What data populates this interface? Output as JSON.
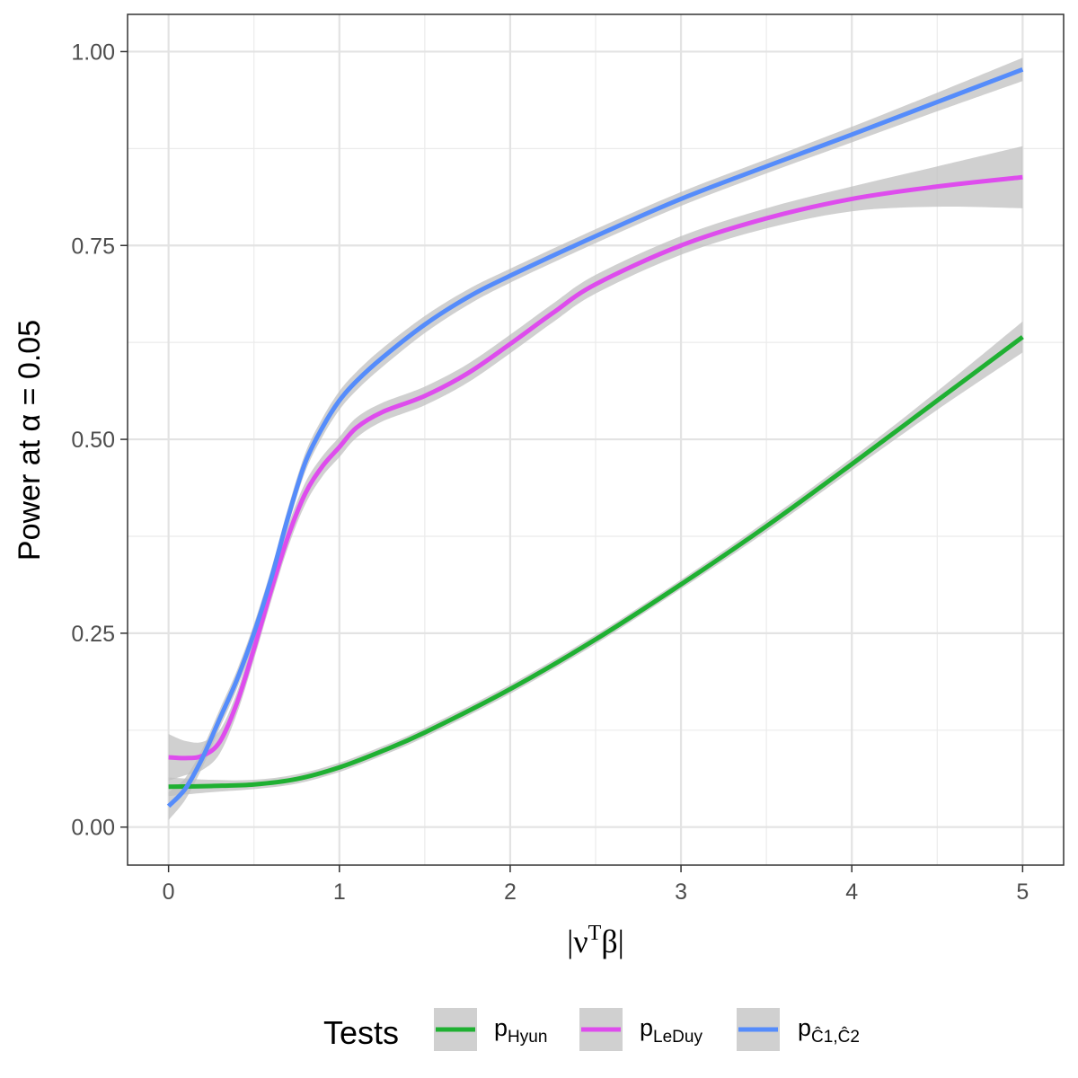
{
  "chart_data": {
    "type": "line",
    "title": "",
    "xlabel": "|νᵀβ|",
    "xlabel_parts": {
      "base": "|ν",
      "sup": "T",
      "rest": "β|"
    },
    "ylabel": "Power at α = 0.05",
    "xlim": [
      -0.24,
      5.24
    ],
    "ylim": [
      -0.049,
      1.048
    ],
    "x_ticks": [
      0,
      1,
      2,
      3,
      4,
      5
    ],
    "x_tick_labels": [
      "0",
      "1",
      "2",
      "3",
      "4",
      "5"
    ],
    "y_ticks": [
      0,
      0.25,
      0.5,
      0.75,
      1.0
    ],
    "y_tick_labels": [
      "0.00",
      "0.25",
      "0.50",
      "0.75",
      "1.00"
    ],
    "grid": true,
    "confidence_band": true,
    "band_color": "#bebebe",
    "legend": {
      "title": "Tests",
      "position": "bottom",
      "entries": [
        {
          "name": "p_Hyun",
          "base": "p",
          "sub": "Hyun",
          "color": "#1fb032"
        },
        {
          "name": "p_LeDuy",
          "base": "p",
          "sub": "LeDuy",
          "color": "#de4ced"
        },
        {
          "name": "p_Ĉ1,Ĉ2",
          "base": "p",
          "sub": "Ĉ1,Ĉ2",
          "color": "#558cfb"
        }
      ]
    },
    "series": [
      {
        "name": "p_Hyun",
        "color": "#1fb032",
        "x": [
          0,
          0.25,
          0.5,
          0.75,
          1,
          1.25,
          1.5,
          2,
          2.5,
          3,
          3.5,
          4,
          4.5,
          5
        ],
        "y": [
          0.052,
          0.053,
          0.055,
          0.062,
          0.077,
          0.098,
          0.122,
          0.178,
          0.242,
          0.313,
          0.388,
          0.468,
          0.55,
          0.632
        ],
        "se": [
          0.012,
          0.008,
          0.006,
          0.006,
          0.006,
          0.006,
          0.006,
          0.006,
          0.006,
          0.006,
          0.007,
          0.008,
          0.012,
          0.02
        ]
      },
      {
        "name": "p_LeDuy",
        "color": "#de4ced",
        "x": [
          0,
          0.1,
          0.2,
          0.3,
          0.4,
          0.5,
          0.6,
          0.7,
          0.8,
          0.9,
          1.0,
          1.1,
          1.25,
          1.5,
          1.75,
          2,
          2.25,
          2.5,
          3,
          3.5,
          4,
          4.5,
          5
        ],
        "y": [
          0.09,
          0.089,
          0.092,
          0.11,
          0.16,
          0.23,
          0.305,
          0.375,
          0.43,
          0.465,
          0.49,
          0.515,
          0.535,
          0.556,
          0.585,
          0.623,
          0.663,
          0.7,
          0.75,
          0.785,
          0.81,
          0.826,
          0.838
        ],
        "se": [
          0.03,
          0.022,
          0.018,
          0.015,
          0.014,
          0.014,
          0.014,
          0.014,
          0.014,
          0.013,
          0.013,
          0.013,
          0.012,
          0.012,
          0.012,
          0.012,
          0.012,
          0.012,
          0.012,
          0.013,
          0.016,
          0.026,
          0.04
        ]
      },
      {
        "name": "p_Ĉ1,Ĉ2",
        "color": "#558cfb",
        "x": [
          0,
          0.1,
          0.2,
          0.3,
          0.4,
          0.5,
          0.6,
          0.7,
          0.8,
          0.9,
          1.0,
          1.1,
          1.25,
          1.5,
          1.75,
          2,
          2.5,
          3,
          3.5,
          4,
          4.5,
          5
        ],
        "y": [
          0.027,
          0.05,
          0.09,
          0.14,
          0.19,
          0.25,
          0.32,
          0.4,
          0.47,
          0.515,
          0.55,
          0.575,
          0.605,
          0.648,
          0.683,
          0.711,
          0.762,
          0.81,
          0.852,
          0.893,
          0.935,
          0.977
        ],
        "se": [
          0.018,
          0.014,
          0.012,
          0.012,
          0.012,
          0.012,
          0.012,
          0.012,
          0.012,
          0.012,
          0.012,
          0.012,
          0.012,
          0.011,
          0.01,
          0.009,
          0.009,
          0.009,
          0.009,
          0.01,
          0.012,
          0.015
        ]
      }
    ]
  }
}
